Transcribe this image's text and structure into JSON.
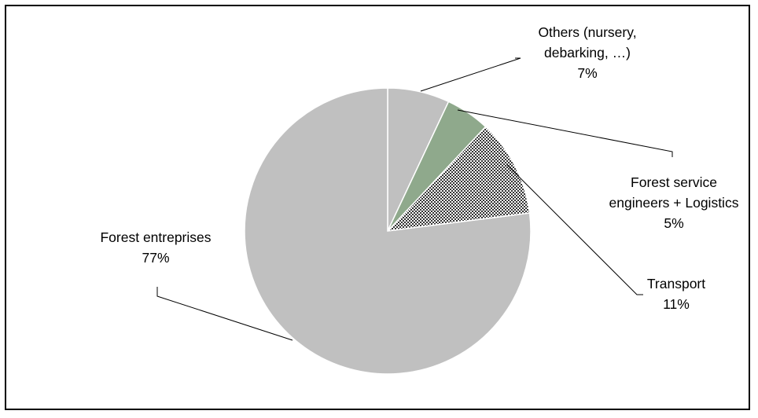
{
  "chart_data": {
    "type": "pie",
    "slices": [
      {
        "label": [
          "Others (nursery,",
          "debarking, …)"
        ],
        "percent_label": "7%",
        "value": 7,
        "color": "#c0c0c0"
      },
      {
        "label": [
          "Forest service",
          "engineers + Logistics"
        ],
        "percent_label": "5%",
        "value": 5,
        "color": "#8fa98c"
      },
      {
        "label": [
          "Transport"
        ],
        "percent_label": "11%",
        "value": 11,
        "color": "#333333",
        "pattern": "checker"
      },
      {
        "label": [
          "Forest entreprises"
        ],
        "percent_label": "77%",
        "value": 77,
        "color": "#c0c0c0"
      }
    ]
  }
}
